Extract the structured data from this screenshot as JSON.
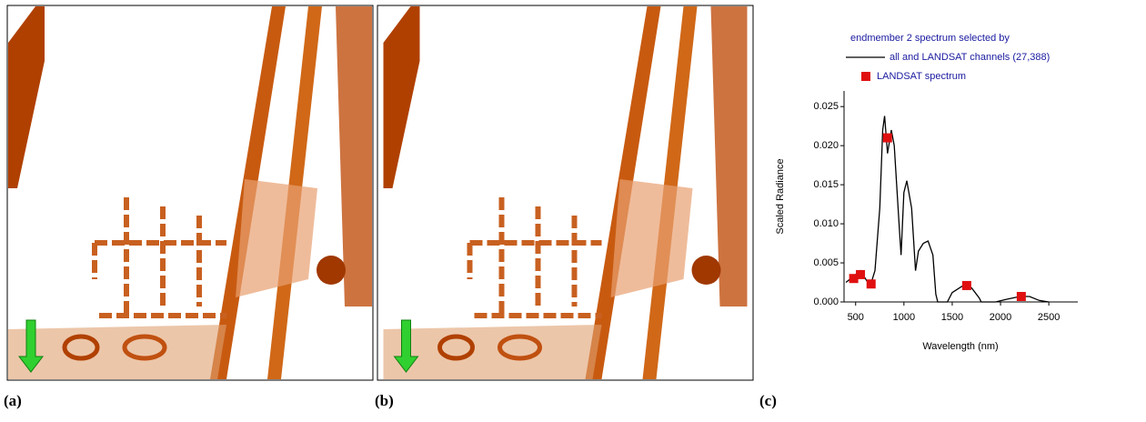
{
  "panels": [
    "(a)",
    "(b)",
    "(c)"
  ],
  "chart_data": {
    "type": "line",
    "title": "endmember 2 spectrum selected by",
    "x_label": "Wavelength (nm)",
    "y_label": "Scaled Radiance",
    "xlim": [
      380,
      2800
    ],
    "ylim": [
      0,
      0.027
    ],
    "xticks": [
      500,
      1000,
      1500,
      2000,
      2500
    ],
    "yticks": [
      {
        "value": 0,
        "label": "0.000"
      },
      0.005,
      {
        "value": 0.01,
        "label": "0.010"
      },
      0.015,
      {
        "value": 0.02,
        "label": "0.020"
      },
      0.025
    ],
    "series": [
      {
        "name": "all and LANDSAT channels (27,388)",
        "type": "line",
        "color": "#000000",
        "x": [
          400,
          450,
          500,
          550,
          600,
          650,
          700,
          750,
          780,
          800,
          830,
          870,
          900,
          950,
          970,
          1000,
          1030,
          1080,
          1120,
          1150,
          1200,
          1250,
          1300,
          1330,
          1350,
          1450,
          1500,
          1600,
          1700,
          1780,
          1800,
          1950,
          2050,
          2200,
          2300,
          2400,
          2500
        ],
        "values": [
          0.0025,
          0.003,
          0.0035,
          0.004,
          0.003,
          0.002,
          0.004,
          0.012,
          0.022,
          0.0238,
          0.019,
          0.022,
          0.02,
          0.01,
          0.006,
          0.014,
          0.0155,
          0.012,
          0.004,
          0.0065,
          0.0075,
          0.0078,
          0.006,
          0.001,
          0,
          0,
          0.0012,
          0.002,
          0.0018,
          0.0005,
          0,
          0,
          0.0003,
          0.0007,
          0.0007,
          0.0002,
          0
        ]
      },
      {
        "name": "LANDSAT spectrum",
        "type": "scatter",
        "color": "#e01010",
        "x": [
          480,
          550,
          660,
          830,
          1650,
          2215
        ],
        "values": [
          0.003,
          0.0035,
          0.0023,
          0.021,
          0.0021,
          0.0007
        ]
      }
    ]
  }
}
